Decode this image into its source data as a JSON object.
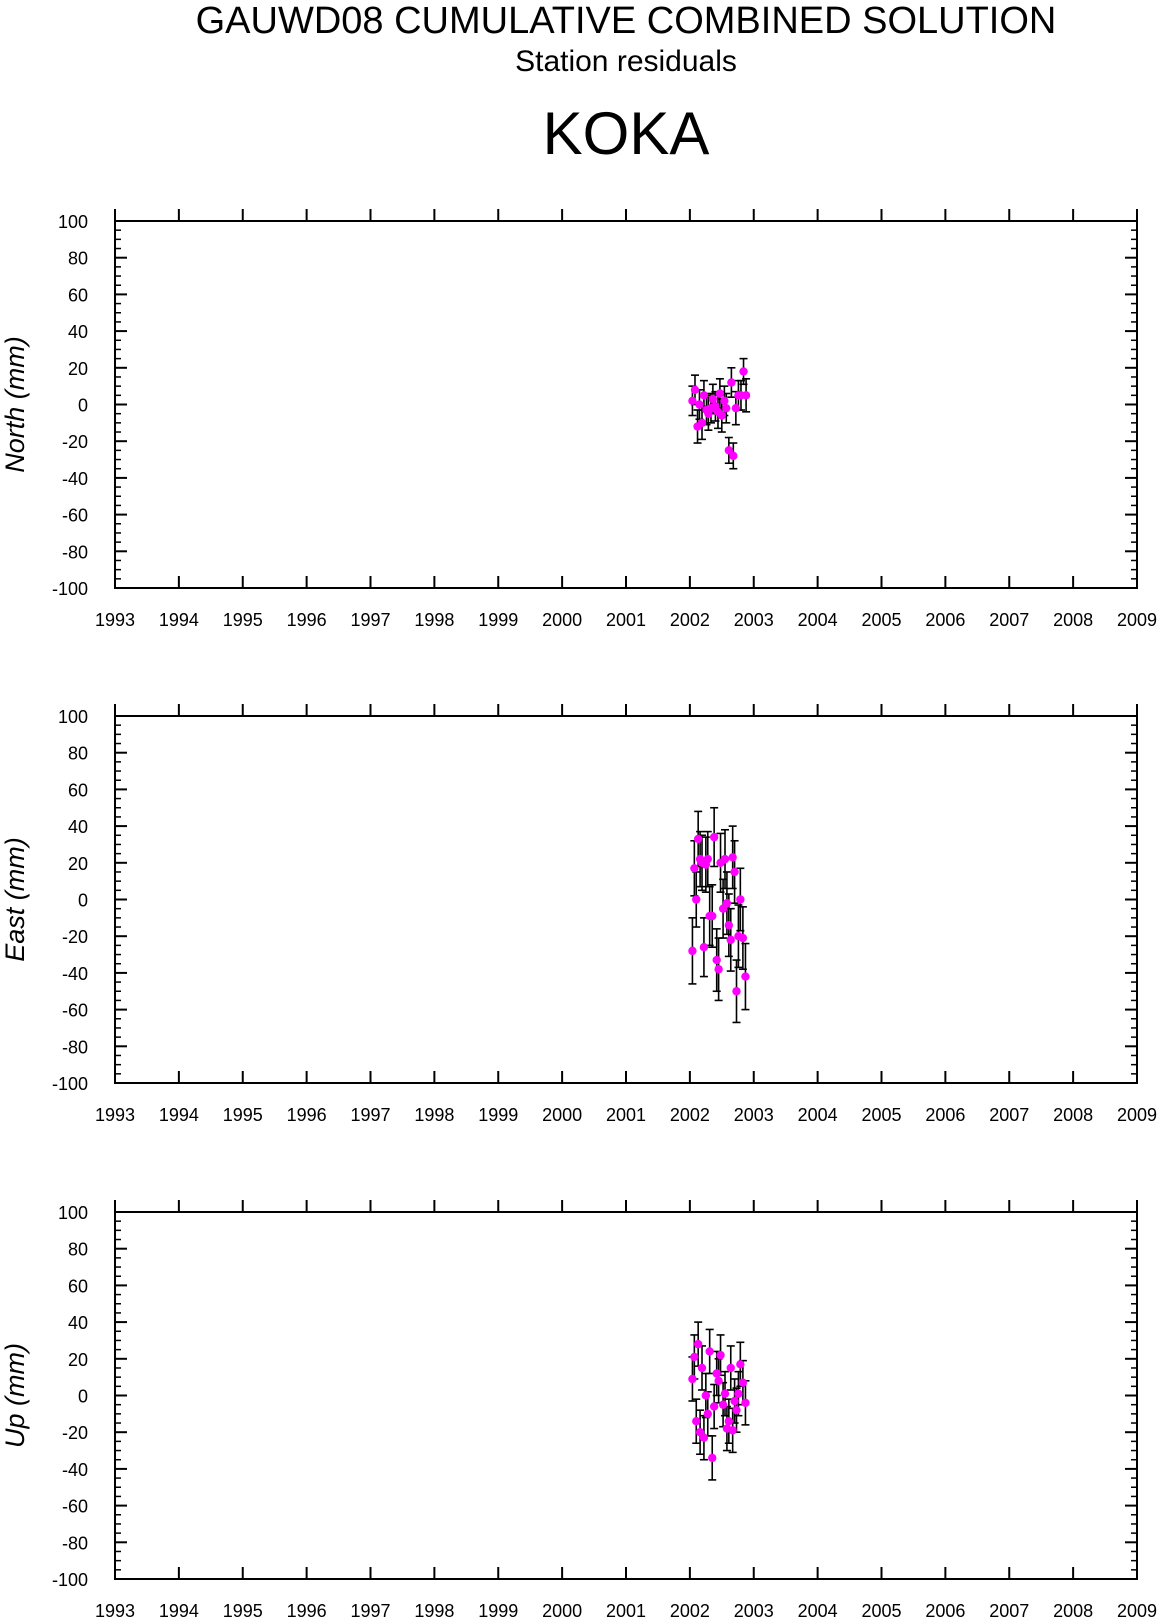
{
  "header": {
    "title": "GAUWD08 CUMULATIVE COMBINED SOLUTION",
    "subtitle": "Station residuals",
    "station": "KOKA"
  },
  "colors": {
    "point": "#ff00ff",
    "errorbar": "#000000",
    "axis": "#000000",
    "background": "#ffffff"
  },
  "chart_data": [
    {
      "type": "scatter",
      "ylabel": "North (mm)",
      "xlim": [
        1993,
        2009
      ],
      "ylim": [
        -100,
        100
      ],
      "xticks": [
        "1993",
        "1994",
        "1995",
        "1996",
        "1997",
        "1998",
        "1999",
        "2000",
        "2001",
        "2002",
        "2003",
        "2004",
        "2005",
        "2006",
        "2007",
        "2008",
        "2009"
      ],
      "yticks": [
        "100",
        "80",
        "60",
        "40",
        "20",
        "0",
        "-20",
        "-40",
        "-60",
        "-80",
        "-100"
      ],
      "grid": false,
      "error_bars": true,
      "x": [
        2002.04,
        2002.08,
        2002.12,
        2002.15,
        2002.19,
        2002.22,
        2002.26,
        2002.29,
        2002.33,
        2002.36,
        2002.4,
        2002.44,
        2002.47,
        2002.5,
        2002.54,
        2002.57,
        2002.61,
        2002.65,
        2002.68,
        2002.72,
        2002.76,
        2002.8,
        2002.84,
        2002.88
      ],
      "y": [
        2,
        8,
        -12,
        0,
        -10,
        5,
        -3,
        -5,
        -2,
        3,
        -1,
        -4,
        6,
        -6,
        2,
        -2,
        -25,
        12,
        -28,
        -2,
        5,
        5,
        18,
        5
      ],
      "err": [
        8,
        8,
        9,
        8,
        9,
        8,
        8,
        9,
        8,
        8,
        8,
        9,
        8,
        9,
        8,
        8,
        7,
        8,
        7,
        9,
        8,
        8,
        7,
        9
      ]
    },
    {
      "type": "scatter",
      "ylabel": "East (mm)",
      "xlim": [
        1993,
        2009
      ],
      "ylim": [
        -100,
        100
      ],
      "xticks": [
        "1993",
        "1994",
        "1995",
        "1996",
        "1997",
        "1998",
        "1999",
        "2000",
        "2001",
        "2002",
        "2003",
        "2004",
        "2005",
        "2006",
        "2007",
        "2008",
        "2009"
      ],
      "yticks": [
        "100",
        "80",
        "60",
        "40",
        "20",
        "0",
        "-20",
        "-40",
        "-60",
        "-80",
        "-100"
      ],
      "grid": false,
      "error_bars": true,
      "x": [
        2002.04,
        2002.07,
        2002.1,
        2002.13,
        2002.16,
        2002.19,
        2002.22,
        2002.25,
        2002.28,
        2002.31,
        2002.35,
        2002.38,
        2002.42,
        2002.45,
        2002.48,
        2002.52,
        2002.55,
        2002.58,
        2002.61,
        2002.64,
        2002.67,
        2002.7,
        2002.73,
        2002.76,
        2002.79,
        2002.83,
        2002.87
      ],
      "y": [
        -28,
        17,
        0,
        33,
        22,
        20,
        -26,
        19,
        22,
        -9,
        -9,
        34,
        -33,
        -38,
        20,
        -5,
        22,
        -2,
        -14,
        -22,
        23,
        15,
        -50,
        -20,
        0,
        -21,
        -42
      ],
      "err": [
        18,
        15,
        15,
        15,
        15,
        15,
        16,
        15,
        15,
        16,
        17,
        16,
        17,
        17,
        16,
        16,
        16,
        17,
        17,
        17,
        17,
        17,
        17,
        17,
        17,
        17,
        18
      ]
    },
    {
      "type": "scatter",
      "ylabel": "Up (mm)",
      "xlim": [
        1993,
        2009
      ],
      "ylim": [
        -100,
        100
      ],
      "xticks": [
        "1993",
        "1994",
        "1995",
        "1996",
        "1997",
        "1998",
        "1999",
        "2000",
        "2001",
        "2002",
        "2003",
        "2004",
        "2005",
        "2006",
        "2007",
        "2008",
        "2009"
      ],
      "yticks": [
        "100",
        "80",
        "60",
        "40",
        "20",
        "0",
        "-20",
        "-40",
        "-60",
        "-80",
        "-100"
      ],
      "grid": false,
      "error_bars": true,
      "x": [
        2002.04,
        2002.07,
        2002.1,
        2002.13,
        2002.16,
        2002.19,
        2002.22,
        2002.25,
        2002.28,
        2002.31,
        2002.35,
        2002.38,
        2002.42,
        2002.45,
        2002.48,
        2002.52,
        2002.55,
        2002.58,
        2002.61,
        2002.64,
        2002.67,
        2002.7,
        2002.73,
        2002.76,
        2002.79,
        2002.83,
        2002.87
      ],
      "y": [
        9,
        21,
        -14,
        28,
        -20,
        15,
        -23,
        0,
        -10,
        24,
        -34,
        -6,
        12,
        8,
        22,
        -5,
        1,
        -18,
        -14,
        15,
        -19,
        -3,
        -8,
        1,
        17,
        7,
        -4
      ],
      "err": [
        12,
        12,
        12,
        12,
        12,
        12,
        12,
        12,
        12,
        12,
        12,
        12,
        12,
        12,
        11,
        12,
        12,
        12,
        12,
        12,
        12,
        12,
        12,
        12,
        12,
        12,
        12
      ]
    }
  ]
}
